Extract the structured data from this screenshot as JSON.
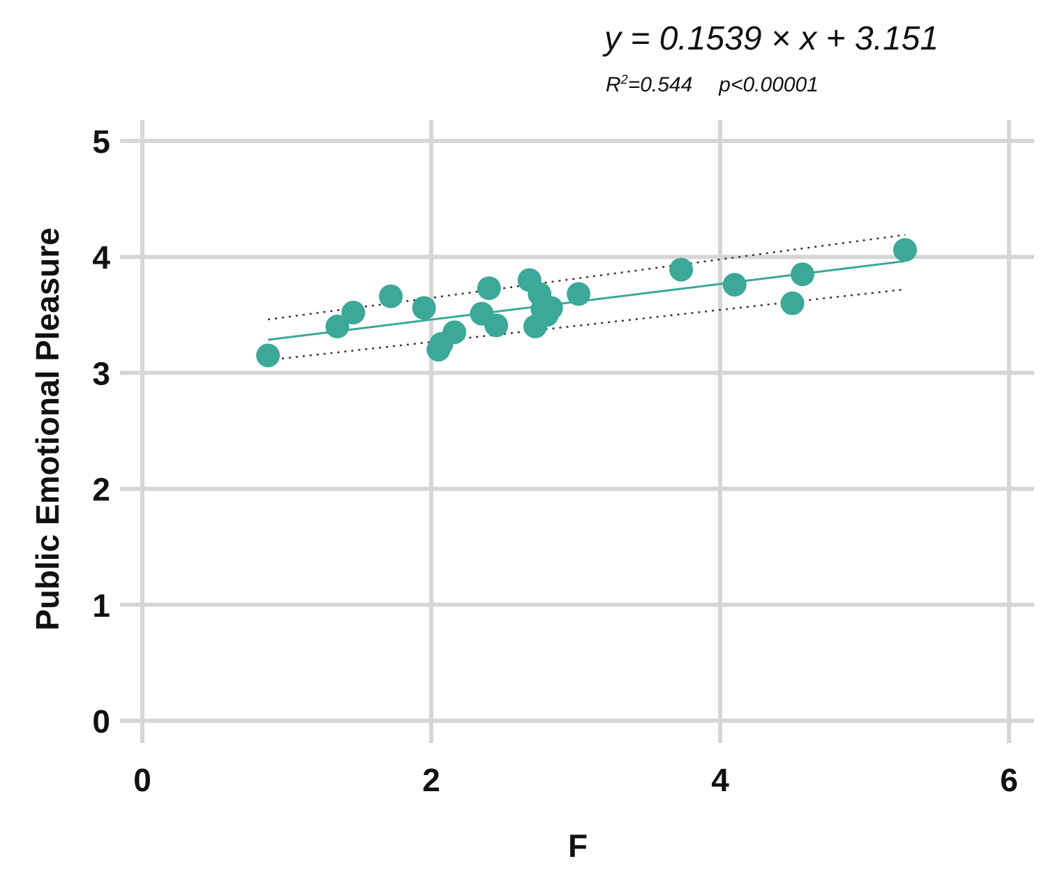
{
  "chart_data": {
    "type": "scatter",
    "annotation": {
      "equation": "y = 0.1539 × x + 3.151",
      "r2_label": "R",
      "r2_sup": "2",
      "r2_value": "=0.544",
      "p_value": "p<0.00001"
    },
    "xlabel": "F",
    "ylabel": "Public Emotional Pleasure",
    "xlim": [
      0,
      6
    ],
    "ylim": [
      0,
      5
    ],
    "x_ticks": [
      "0",
      "2",
      "4",
      "6"
    ],
    "y_ticks": [
      "0",
      "1",
      "2",
      "3",
      "4",
      "5"
    ],
    "grid": true,
    "point_color": "#3BA898",
    "points": [
      {
        "x": 0.87,
        "y": 3.15
      },
      {
        "x": 1.35,
        "y": 3.4
      },
      {
        "x": 1.46,
        "y": 3.52
      },
      {
        "x": 1.72,
        "y": 3.66
      },
      {
        "x": 1.95,
        "y": 3.56
      },
      {
        "x": 2.05,
        "y": 3.2
      },
      {
        "x": 2.07,
        "y": 3.25
      },
      {
        "x": 2.16,
        "y": 3.35
      },
      {
        "x": 2.35,
        "y": 3.51
      },
      {
        "x": 2.4,
        "y": 3.73
      },
      {
        "x": 2.45,
        "y": 3.41
      },
      {
        "x": 2.68,
        "y": 3.8
      },
      {
        "x": 2.72,
        "y": 3.4
      },
      {
        "x": 2.75,
        "y": 3.68
      },
      {
        "x": 2.77,
        "y": 3.55
      },
      {
        "x": 2.8,
        "y": 3.5
      },
      {
        "x": 2.83,
        "y": 3.56
      },
      {
        "x": 3.02,
        "y": 3.68
      },
      {
        "x": 3.73,
        "y": 3.89
      },
      {
        "x": 4.1,
        "y": 3.76
      },
      {
        "x": 4.5,
        "y": 3.6
      },
      {
        "x": 4.57,
        "y": 3.85
      },
      {
        "x": 5.28,
        "y": 4.06
      }
    ],
    "fit": {
      "slope": 0.1539,
      "intercept": 3.151,
      "x_range": [
        0.87,
        5.28
      ]
    },
    "confidence_band": {
      "upper": [
        [
          0.87,
          3.46
        ],
        [
          5.28,
          4.19
        ]
      ],
      "lower": [
        [
          0.87,
          3.11
        ],
        [
          5.28,
          3.72
        ]
      ]
    }
  }
}
